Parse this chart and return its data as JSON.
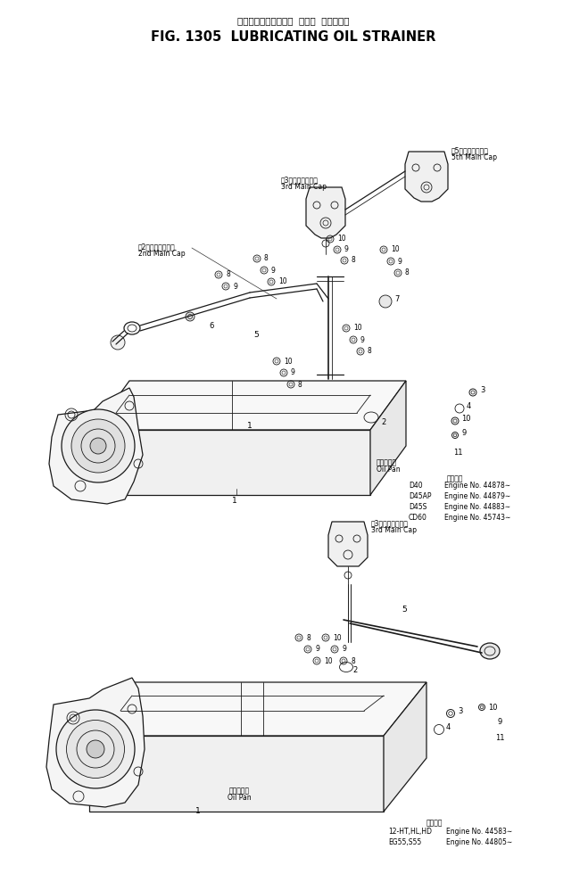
{
  "title_japanese": "ルーブリケーティング  オイル  ストレーナ",
  "title_english": "FIG. 1305  LUBRICATING OIL STRAINER",
  "bg_color": "#ffffff",
  "line_color": "#000000",
  "fig_width": 6.59,
  "fig_height": 9.89,
  "dpi": 100,
  "upper": {
    "engine_info_title": "適用小山",
    "engine_lines": [
      [
        "D40",
        "Engine No. 44878∼"
      ],
      [
        "D45AP",
        "Engine No. 44879∼"
      ],
      [
        "D45S",
        "Engine No. 44883∼"
      ],
      [
        "CD60",
        "Engine No. 45743∼"
      ]
    ],
    "3rd_cap_jp": "第3メインキャップ",
    "3rd_cap_en": "3rd Main Cap",
    "2nd_cap_jp": "第2メインキャップ",
    "2nd_cap_en": "2nd Main Cap",
    "5th_cap_jp": "第5メインキャップ",
    "5th_cap_en": "5th Main Cap",
    "oil_pan_jp": "オイルパン",
    "oil_pan_en": "Oil Pan"
  },
  "lower": {
    "engine_info_title": "適用小山",
    "engine_lines": [
      [
        "12-HT,HL,HD",
        "Engine No. 44583∼"
      ],
      [
        "EG55,S55",
        "Engine No. 44805∼"
      ]
    ],
    "3rd_cap_jp": "第3メインキャップ",
    "3rd_cap_en": "3rd Main Cap",
    "oil_pan_jp": "オイルパン",
    "oil_pan_en": "Oil Pan"
  }
}
